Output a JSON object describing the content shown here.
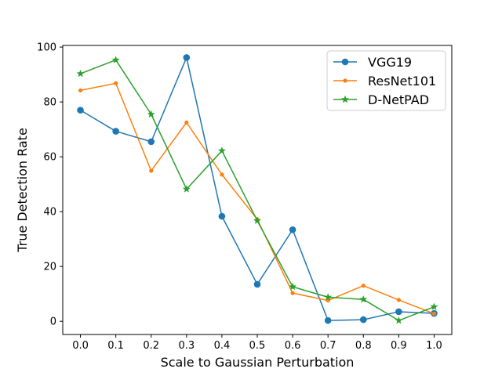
{
  "chart_data": {
    "type": "line",
    "title": "",
    "xlabel": "Scale to Gaussian Perturbation",
    "ylabel": "True Detection Rate",
    "x": [
      0.0,
      0.1,
      0.2,
      0.3,
      0.4,
      0.5,
      0.6,
      0.7,
      0.8,
      0.9,
      1.0
    ],
    "x_tick_labels": [
      "0.0",
      "0.1",
      "0.2",
      "0.3",
      "0.4",
      "0.5",
      "0.6",
      "0.7",
      "0.8",
      "0.9",
      "1.0"
    ],
    "y_ticks": [
      0,
      20,
      40,
      60,
      80,
      100
    ],
    "y_tick_labels": [
      "0",
      "20",
      "40",
      "60",
      "80",
      "100"
    ],
    "xlim": [
      -0.05,
      1.05
    ],
    "ylim": [
      -4.8,
      100.6
    ],
    "grid": false,
    "legend_position": "top-right",
    "series": [
      {
        "name": "VGG19",
        "color": "#1f77b4",
        "marker": "circle",
        "values": [
          77.0,
          69.3,
          65.5,
          96.2,
          38.3,
          13.5,
          33.4,
          0.3,
          0.6,
          3.5,
          2.9
        ]
      },
      {
        "name": "ResNet101",
        "color": "#ff7f0e",
        "marker": "point",
        "values": [
          84.2,
          86.8,
          54.9,
          72.5,
          53.5,
          37.2,
          10.3,
          7.6,
          13.0,
          7.8,
          2.8
        ]
      },
      {
        "name": "D-NetPAD",
        "color": "#2ca02c",
        "marker": "star",
        "values": [
          90.3,
          95.3,
          75.5,
          48.2,
          62.2,
          36.7,
          12.6,
          8.8,
          8.0,
          0.3,
          5.3
        ]
      }
    ]
  }
}
